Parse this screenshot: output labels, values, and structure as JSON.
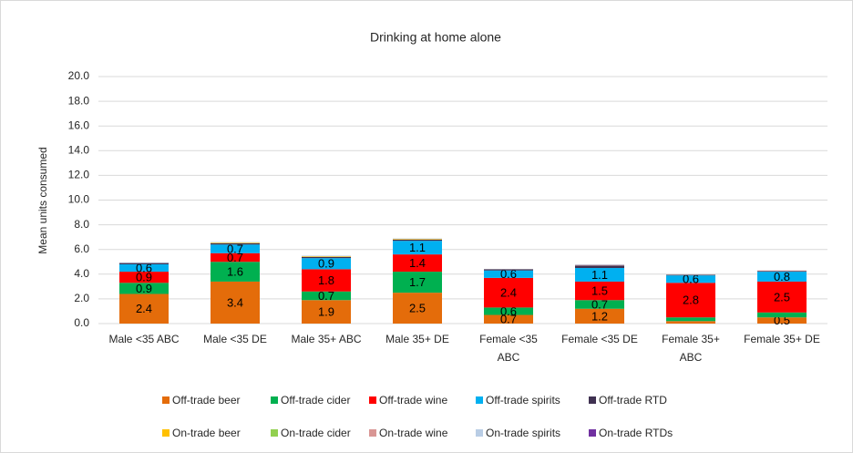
{
  "chart_data": {
    "type": "stacked_bar",
    "title": "Drinking at home alone",
    "y_label": "Mean units consumed",
    "categories": [
      "Male <35 ABC",
      "Male <35 DE",
      "Male 35+ ABC",
      "Male 35+ DE",
      "Female <35 ABC",
      "Female <35 DE",
      "Female 35+ ABC",
      "Female 35+ DE"
    ],
    "ylim": [
      0,
      20
    ],
    "yticks": [
      {
        "value": 0,
        "label": "0.0"
      },
      {
        "value": 2,
        "label": "2.0"
      },
      {
        "value": 4,
        "label": "4.0"
      },
      {
        "value": 6,
        "label": "6.0"
      },
      {
        "value": 8,
        "label": "8.0"
      },
      {
        "value": 10,
        "label": "10.0"
      },
      {
        "value": 12,
        "label": "12.0"
      },
      {
        "value": 14,
        "label": "14.0"
      },
      {
        "value": 16,
        "label": "16.0"
      },
      {
        "value": 18,
        "label": "18.0"
      },
      {
        "value": 20,
        "label": "20.0"
      }
    ],
    "grid": true,
    "legend": "bottom",
    "series": [
      {
        "name": "Off-trade beer",
        "color": "#e46c0a",
        "values": [
          2.4,
          3.4,
          1.9,
          2.5,
          0.7,
          1.2,
          0.2,
          0.5
        ]
      },
      {
        "name": "Off-trade cider",
        "color": "#00b050",
        "values": [
          0.9,
          1.6,
          0.7,
          1.7,
          0.6,
          0.7,
          0.3,
          0.4
        ]
      },
      {
        "name": "Off-trade wine",
        "color": "#ff0000",
        "values": [
          0.9,
          0.7,
          1.8,
          1.4,
          2.4,
          1.5,
          2.8,
          2.5
        ]
      },
      {
        "name": "Off-trade spirits",
        "color": "#00b0f0",
        "values": [
          0.6,
          0.7,
          0.9,
          1.1,
          0.6,
          1.1,
          0.6,
          0.8
        ]
      },
      {
        "name": "Off-trade RTD",
        "color": "#3f3151",
        "values": [
          0.1,
          0.1,
          0.1,
          0.1,
          0.1,
          0.2,
          0.05,
          0.05
        ]
      },
      {
        "name": "On-trade beer",
        "color": "#ffc000",
        "values": [
          0,
          0.05,
          0.05,
          0.05,
          0,
          0,
          0,
          0
        ]
      },
      {
        "name": "On-trade cider",
        "color": "#92d050",
        "values": [
          0,
          0,
          0,
          0,
          0,
          0,
          0,
          0
        ]
      },
      {
        "name": "On-trade wine",
        "color": "#d99694",
        "values": [
          0,
          0,
          0,
          0,
          0,
          0.05,
          0,
          0.05
        ]
      },
      {
        "name": "On-trade spirits",
        "color": "#b9cde5",
        "values": [
          0.05,
          0.05,
          0.05,
          0.05,
          0,
          0.05,
          0,
          0
        ]
      },
      {
        "name": "On-trade RTDs",
        "color": "#7030a0",
        "values": [
          0,
          0,
          0,
          0,
          0,
          0,
          0,
          0
        ]
      }
    ]
  }
}
